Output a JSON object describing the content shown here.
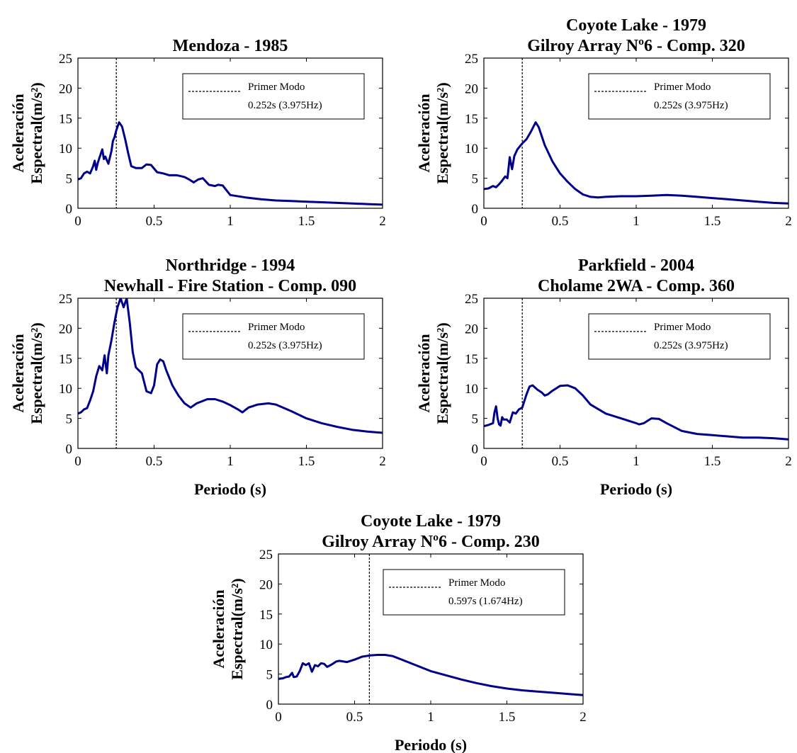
{
  "chart_data": [
    {
      "type": "line",
      "title_lines": [
        "Mendoza - 1985"
      ],
      "xlabel": "",
      "ylabel_lines": [
        "Aceleración",
        "Espectral(m/s²)"
      ],
      "xlim": [
        0,
        2
      ],
      "ylim": [
        0,
        25
      ],
      "xticks": [
        "0",
        "0.5",
        "1",
        "1.5",
        "2"
      ],
      "yticks": [
        "0",
        "5",
        "10",
        "15",
        "20",
        "25"
      ],
      "grid": false,
      "legend": {
        "label_line1": "Primer Modo",
        "label_line2": "0.252s (3.975Hz)",
        "position": "top-right"
      },
      "vline": 0.252,
      "line_color": "#00008B",
      "series": [
        {
          "x": [
            0,
            0.02,
            0.04,
            0.06,
            0.08,
            0.1,
            0.11,
            0.12,
            0.13,
            0.14,
            0.16,
            0.17,
            0.18,
            0.19,
            0.2,
            0.21,
            0.22,
            0.23,
            0.24,
            0.252,
            0.27,
            0.29,
            0.31,
            0.33,
            0.35,
            0.38,
            0.42,
            0.45,
            0.48,
            0.5,
            0.52,
            0.56,
            0.6,
            0.65,
            0.7,
            0.73,
            0.76,
            0.79,
            0.82,
            0.86,
            0.9,
            0.92,
            0.95,
            1.0,
            1.1,
            1.2,
            1.3,
            1.4,
            1.5,
            1.6,
            1.7,
            1.8,
            1.9,
            2.0
          ],
          "y": [
            4.8,
            5.0,
            5.8,
            6.1,
            5.8,
            7.0,
            7.9,
            6.4,
            7.5,
            8.3,
            9.8,
            8.2,
            8.6,
            8.0,
            7.4,
            8.5,
            9.5,
            11.2,
            11.8,
            13.0,
            14.3,
            13.6,
            11.5,
            9.2,
            7.0,
            6.7,
            6.7,
            7.3,
            7.2,
            6.6,
            6.0,
            5.8,
            5.5,
            5.5,
            5.2,
            4.8,
            4.3,
            4.8,
            5.0,
            3.9,
            3.7,
            3.9,
            3.8,
            2.2,
            1.8,
            1.5,
            1.3,
            1.2,
            1.1,
            1.0,
            0.9,
            0.8,
            0.7,
            0.6
          ]
        }
      ]
    },
    {
      "type": "line",
      "title_lines": [
        "Coyote Lake - 1979",
        "Gilroy Array Nº6 - Comp. 320"
      ],
      "xlabel": "",
      "ylabel_lines": [
        "Aceleración",
        "Espectral(m/s²)"
      ],
      "xlim": [
        0,
        2
      ],
      "ylim": [
        0,
        25
      ],
      "xticks": [
        "0",
        "0.5",
        "1",
        "1.5",
        "2"
      ],
      "yticks": [
        "0",
        "5",
        "10",
        "15",
        "20",
        "25"
      ],
      "grid": false,
      "legend": {
        "label_line1": "Primer Modo",
        "label_line2": "0.252s (3.975Hz)",
        "position": "top-right"
      },
      "vline": 0.252,
      "line_color": "#00008B",
      "series": [
        {
          "x": [
            0,
            0.03,
            0.06,
            0.08,
            0.1,
            0.12,
            0.14,
            0.155,
            0.17,
            0.185,
            0.2,
            0.22,
            0.252,
            0.28,
            0.31,
            0.34,
            0.36,
            0.4,
            0.45,
            0.5,
            0.55,
            0.6,
            0.65,
            0.7,
            0.75,
            0.8,
            0.9,
            1.0,
            1.1,
            1.2,
            1.3,
            1.4,
            1.5,
            1.6,
            1.7,
            1.8,
            1.9,
            2.0
          ],
          "y": [
            3.2,
            3.3,
            3.7,
            3.5,
            4.0,
            4.6,
            5.3,
            5.0,
            8.5,
            6.5,
            8.7,
            9.8,
            10.8,
            11.5,
            12.8,
            14.3,
            13.5,
            10.5,
            7.8,
            5.8,
            4.4,
            3.2,
            2.3,
            1.9,
            1.8,
            1.9,
            2.0,
            2.0,
            2.1,
            2.2,
            2.1,
            1.9,
            1.7,
            1.5,
            1.3,
            1.1,
            0.9,
            0.8
          ]
        }
      ]
    },
    {
      "type": "line",
      "title_lines": [
        "Northridge - 1994",
        "Newhall - Fire Station - Comp. 090"
      ],
      "xlabel": "Periodo (s)",
      "ylabel_lines": [
        "Aceleración",
        "Espectral(m/s²)"
      ],
      "xlim": [
        0,
        2
      ],
      "ylim": [
        0,
        25
      ],
      "xticks": [
        "0",
        "0.5",
        "1",
        "1.5",
        "2"
      ],
      "yticks": [
        "0",
        "5",
        "10",
        "15",
        "20",
        "25"
      ],
      "grid": false,
      "legend": {
        "label_line1": "Primer Modo",
        "label_line2": "0.252s (3.975Hz)",
        "position": "top-right"
      },
      "vline": 0.252,
      "line_color": "#00008B",
      "series": [
        {
          "x": [
            0,
            0.02,
            0.04,
            0.06,
            0.08,
            0.1,
            0.12,
            0.14,
            0.16,
            0.175,
            0.19,
            0.2,
            0.22,
            0.24,
            0.26,
            0.28,
            0.3,
            0.32,
            0.34,
            0.36,
            0.38,
            0.4,
            0.42,
            0.45,
            0.48,
            0.5,
            0.52,
            0.54,
            0.56,
            0.58,
            0.62,
            0.66,
            0.7,
            0.74,
            0.78,
            0.85,
            0.9,
            0.95,
            1.0,
            1.05,
            1.08,
            1.12,
            1.18,
            1.25,
            1.3,
            1.4,
            1.5,
            1.6,
            1.7,
            1.8,
            1.9,
            2.0
          ],
          "y": [
            5.8,
            6.0,
            6.5,
            6.7,
            8.0,
            9.5,
            12.0,
            13.7,
            13.0,
            15.5,
            12.5,
            15.5,
            18.0,
            21.0,
            23.5,
            25.0,
            23.5,
            25.0,
            21.0,
            16.0,
            13.5,
            13.0,
            12.5,
            9.5,
            9.2,
            10.5,
            14.0,
            14.8,
            14.5,
            13.0,
            10.5,
            8.8,
            7.5,
            6.8,
            7.5,
            8.2,
            8.2,
            7.8,
            7.2,
            6.5,
            6.0,
            6.8,
            7.3,
            7.5,
            7.3,
            6.2,
            5.0,
            4.2,
            3.6,
            3.1,
            2.8,
            2.6
          ]
        }
      ]
    },
    {
      "type": "line",
      "title_lines": [
        "Parkfield - 2004",
        "Cholame 2WA - Comp. 360"
      ],
      "xlabel": "Periodo (s)",
      "ylabel_lines": [
        "Aceleración",
        "Espectral(m/s²)"
      ],
      "xlim": [
        0,
        2
      ],
      "ylim": [
        0,
        25
      ],
      "xticks": [
        "0",
        "0.5",
        "1",
        "1.5",
        "2"
      ],
      "yticks": [
        "0",
        "5",
        "10",
        "15",
        "20",
        "25"
      ],
      "grid": false,
      "legend": {
        "label_line1": "Primer Modo",
        "label_line2": "0.252s (3.975Hz)",
        "position": "top-right"
      },
      "vline": 0.252,
      "line_color": "#00008B",
      "series": [
        {
          "x": [
            0,
            0.03,
            0.06,
            0.07,
            0.08,
            0.09,
            0.1,
            0.11,
            0.12,
            0.13,
            0.15,
            0.17,
            0.19,
            0.21,
            0.23,
            0.252,
            0.28,
            0.3,
            0.32,
            0.35,
            0.38,
            0.4,
            0.42,
            0.45,
            0.5,
            0.55,
            0.6,
            0.65,
            0.7,
            0.8,
            0.9,
            1.0,
            1.02,
            1.05,
            1.1,
            1.15,
            1.2,
            1.3,
            1.4,
            1.5,
            1.6,
            1.7,
            1.8,
            1.9,
            2.0
          ],
          "y": [
            3.7,
            3.9,
            4.2,
            6.0,
            7.0,
            5.0,
            4.0,
            3.8,
            5.2,
            4.8,
            4.8,
            4.3,
            6.0,
            5.8,
            6.5,
            6.8,
            9.0,
            10.3,
            10.5,
            9.8,
            9.3,
            8.8,
            9.0,
            9.6,
            10.4,
            10.5,
            10.0,
            8.8,
            7.3,
            5.8,
            5.0,
            4.2,
            4.0,
            4.2,
            5.0,
            4.9,
            4.2,
            2.9,
            2.4,
            2.2,
            2.0,
            1.8,
            1.8,
            1.7,
            1.5
          ]
        }
      ]
    },
    {
      "type": "line",
      "title_lines": [
        "Coyote Lake - 1979",
        "Gilroy Array Nº6 - Comp. 230"
      ],
      "xlabel": "Periodo (s)",
      "ylabel_lines": [
        "Aceleración",
        "Espectral(m/s²)"
      ],
      "xlim": [
        0,
        2
      ],
      "ylim": [
        0,
        25
      ],
      "xticks": [
        "0",
        "0.5",
        "1",
        "1.5",
        "2"
      ],
      "yticks": [
        "0",
        "5",
        "10",
        "15",
        "20",
        "25"
      ],
      "grid": false,
      "legend": {
        "label_line1": "Primer Modo",
        "label_line2": "0.597s (1.674Hz)",
        "position": "top-right"
      },
      "vline": 0.597,
      "line_color": "#00008B",
      "series": [
        {
          "x": [
            0,
            0.03,
            0.05,
            0.07,
            0.09,
            0.1,
            0.12,
            0.14,
            0.16,
            0.18,
            0.2,
            0.22,
            0.24,
            0.26,
            0.28,
            0.3,
            0.32,
            0.35,
            0.38,
            0.4,
            0.45,
            0.5,
            0.55,
            0.6,
            0.65,
            0.7,
            0.75,
            0.8,
            0.9,
            1.0,
            1.1,
            1.2,
            1.3,
            1.4,
            1.5,
            1.6,
            1.7,
            1.8,
            1.9,
            2.0
          ],
          "y": [
            4.2,
            4.3,
            4.5,
            4.6,
            5.2,
            4.5,
            4.6,
            5.5,
            6.8,
            6.5,
            6.8,
            5.4,
            6.5,
            6.3,
            6.8,
            6.7,
            6.2,
            6.6,
            7.1,
            7.2,
            7.0,
            7.4,
            7.9,
            8.1,
            8.2,
            8.2,
            8.0,
            7.5,
            6.5,
            5.5,
            4.8,
            4.1,
            3.5,
            3.0,
            2.6,
            2.3,
            2.1,
            1.9,
            1.7,
            1.5
          ]
        }
      ]
    }
  ]
}
